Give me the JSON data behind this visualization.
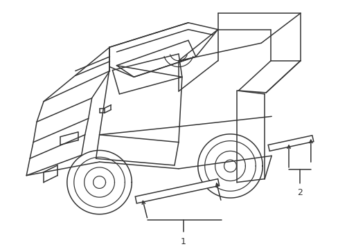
{
  "background_color": "#ffffff",
  "line_color": "#333333",
  "line_width": 1.1,
  "figure_width": 4.89,
  "figure_height": 3.6,
  "dpi": 100,
  "label1": "1",
  "label2": "2",
  "label_fontsize": 9
}
